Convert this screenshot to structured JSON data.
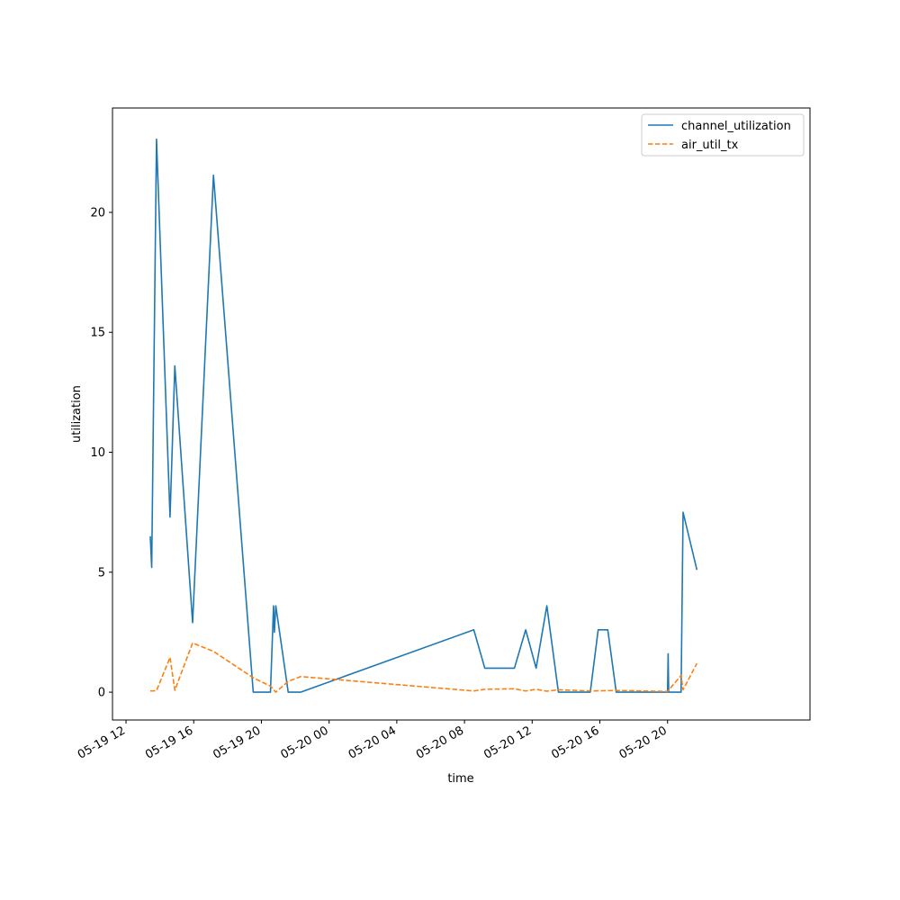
{
  "chart_data": {
    "type": "line",
    "title": "",
    "xlabel": "time",
    "ylabel": "utilization",
    "xlim": [
      "2024-05-19 11:12",
      "2024-05-21 04:25"
    ],
    "ylim": [
      -1.16,
      24.35
    ],
    "x_ticks": [
      {
        "time": "2024-05-19 12:00",
        "label": "05-19 12"
      },
      {
        "time": "2024-05-19 16:00",
        "label": "05-19 16"
      },
      {
        "time": "2024-05-19 20:00",
        "label": "05-19 20"
      },
      {
        "time": "2024-05-20 00:00",
        "label": "05-20 00"
      },
      {
        "time": "2024-05-20 04:00",
        "label": "05-20 04"
      },
      {
        "time": "2024-05-20 08:00",
        "label": "05-20 08"
      },
      {
        "time": "2024-05-20 12:00",
        "label": "05-20 12"
      },
      {
        "time": "2024-05-20 16:00",
        "label": "05-20 16"
      },
      {
        "time": "2024-05-20 20:00",
        "label": "05-20 20"
      }
    ],
    "y_ticks": [
      0,
      5,
      10,
      15,
      20
    ],
    "grid": false,
    "legend": "upper right",
    "series": [
      {
        "name": "channel_utilization",
        "color": "#1f77b4",
        "style": "solid",
        "points": [
          {
            "x": "2024-05-19 13:26",
            "y": 6.5
          },
          {
            "x": "2024-05-19 13:31",
            "y": 5.2
          },
          {
            "x": "2024-05-19 13:48",
            "y": 23.05
          },
          {
            "x": "2024-05-19 14:36",
            "y": 7.3
          },
          {
            "x": "2024-05-19 14:53",
            "y": 13.6
          },
          {
            "x": "2024-05-19 15:56",
            "y": 2.9
          },
          {
            "x": "2024-05-19 17:10",
            "y": 21.55
          },
          {
            "x": "2024-05-19 19:31",
            "y": 0.0
          },
          {
            "x": "2024-05-19 20:32",
            "y": 0.0
          },
          {
            "x": "2024-05-19 20:43",
            "y": 3.6
          },
          {
            "x": "2024-05-19 20:46",
            "y": 2.5
          },
          {
            "x": "2024-05-19 20:51",
            "y": 3.6
          },
          {
            "x": "2024-05-19 21:35",
            "y": 0.0
          },
          {
            "x": "2024-05-19 22:19",
            "y": 0.0
          },
          {
            "x": "2024-05-20 08:33",
            "y": 2.6
          },
          {
            "x": "2024-05-20 09:12",
            "y": 1.0
          },
          {
            "x": "2024-05-20 10:57",
            "y": 1.0
          },
          {
            "x": "2024-05-20 11:37",
            "y": 2.6
          },
          {
            "x": "2024-05-20 12:14",
            "y": 1.0
          },
          {
            "x": "2024-05-20 12:52",
            "y": 3.6
          },
          {
            "x": "2024-05-20 13:33",
            "y": 0.0
          },
          {
            "x": "2024-05-20 15:26",
            "y": 0.0
          },
          {
            "x": "2024-05-20 15:54",
            "y": 2.6
          },
          {
            "x": "2024-05-20 16:28",
            "y": 2.6
          },
          {
            "x": "2024-05-20 16:58",
            "y": 0.0
          },
          {
            "x": "2024-05-20 20:00",
            "y": 0.0
          },
          {
            "x": "2024-05-20 20:02",
            "y": 1.6
          },
          {
            "x": "2024-05-20 20:04",
            "y": 0.0
          },
          {
            "x": "2024-05-20 20:48",
            "y": 0.0
          },
          {
            "x": "2024-05-20 20:55",
            "y": 7.5
          },
          {
            "x": "2024-05-20 21:44",
            "y": 5.1
          }
        ]
      },
      {
        "name": "air_util_tx",
        "color": "#ff7f0e",
        "style": "dashed",
        "points": [
          {
            "x": "2024-05-19 13:26",
            "y": 0.05
          },
          {
            "x": "2024-05-19 13:48",
            "y": 0.06
          },
          {
            "x": "2024-05-19 14:36",
            "y": 1.45
          },
          {
            "x": "2024-05-19 14:53",
            "y": 0.08
          },
          {
            "x": "2024-05-19 15:56",
            "y": 2.05
          },
          {
            "x": "2024-05-19 17:10",
            "y": 1.7
          },
          {
            "x": "2024-05-19 19:31",
            "y": 0.6
          },
          {
            "x": "2024-05-19 20:32",
            "y": 0.25
          },
          {
            "x": "2024-05-19 20:51",
            "y": 0.0
          },
          {
            "x": "2024-05-19 21:35",
            "y": 0.45
          },
          {
            "x": "2024-05-19 22:19",
            "y": 0.65
          },
          {
            "x": "2024-05-20 08:33",
            "y": 0.05
          },
          {
            "x": "2024-05-20 09:12",
            "y": 0.12
          },
          {
            "x": "2024-05-20 10:57",
            "y": 0.14
          },
          {
            "x": "2024-05-20 11:37",
            "y": 0.05
          },
          {
            "x": "2024-05-20 12:14",
            "y": 0.12
          },
          {
            "x": "2024-05-20 12:52",
            "y": 0.04
          },
          {
            "x": "2024-05-20 13:33",
            "y": 0.1
          },
          {
            "x": "2024-05-20 15:26",
            "y": 0.05
          },
          {
            "x": "2024-05-20 16:58",
            "y": 0.07
          },
          {
            "x": "2024-05-20 20:00",
            "y": 0.03
          },
          {
            "x": "2024-05-20 20:48",
            "y": 0.7
          },
          {
            "x": "2024-05-20 20:55",
            "y": 0.1
          },
          {
            "x": "2024-05-20 21:44",
            "y": 1.2
          }
        ]
      }
    ]
  }
}
